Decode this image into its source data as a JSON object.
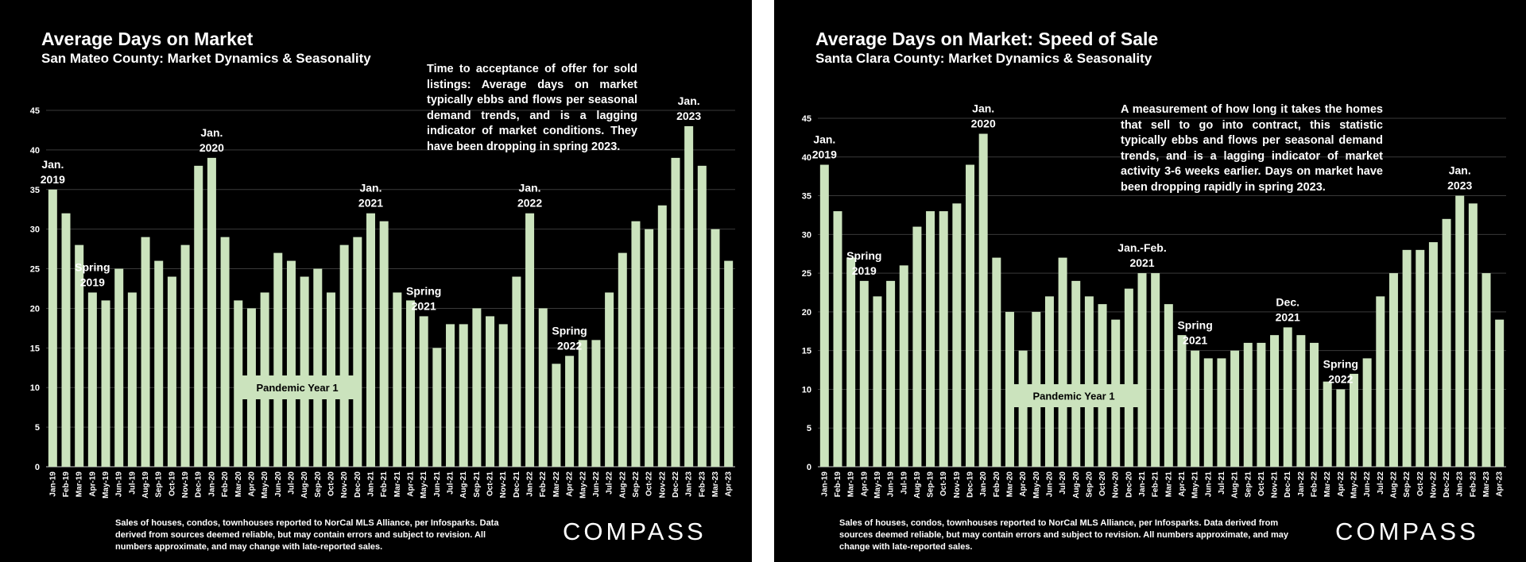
{
  "colors": {
    "bar": "#cbe3bd",
    "grid": "#3a3a3a",
    "background": "#000000"
  },
  "left": {
    "title": "Average Days on Market",
    "subtitle": "San Mateo County: Market Dynamics & Seasonality",
    "description": "Time to acceptance of offer for sold listings: Average days on market typically ebbs and flows per seasonal demand trends, and is a lagging indicator of market conditions. They have been dropping in spring 2023.",
    "footnote": "Sales of houses, condos, townhouses reported to NorCal MLS Alliance, per Infosparks. Data derived from sources deemed reliable, but may contain errors and subject to revision. All numbers approximate, and may change with late-reported sales.",
    "logo": "COMPASS",
    "pandemic_label": "Pandemic Year 1"
  },
  "right": {
    "title": "Average Days on Market: Speed of Sale",
    "subtitle": "Santa Clara County: Market Dynamics & Seasonality",
    "description": "A measurement of how long it takes the homes that sell to go into contract, this statistic typically ebbs and flows per seasonal demand trends, and is a lagging indicator of market activity 3-6 weeks earlier. Days on market have been dropping rapidly in spring 2023.",
    "footnote": "Sales of houses, condos, townhouses reported to NorCal MLS Alliance, per Infosparks. Data derived from sources deemed reliable, but may contain errors and subject to revision. All numbers approximate, and may change with late-reported sales.",
    "logo": "COMPASS",
    "pandemic_label": "Pandemic Year 1"
  },
  "chart_data": [
    {
      "type": "bar",
      "title": "Average Days on Market",
      "xlabel": "",
      "ylabel": "",
      "ylim": [
        0,
        45
      ],
      "yticks": [
        0,
        5,
        10,
        15,
        20,
        25,
        30,
        35,
        40,
        45
      ],
      "categories": [
        "Jan-19",
        "Feb-19",
        "Mar-19",
        "Apr-19",
        "May-19",
        "Jun-19",
        "Jul-19",
        "Aug-19",
        "Sep-19",
        "Oct-19",
        "Nov-19",
        "Dec-19",
        "Jan-20",
        "Feb-20",
        "Mar-20",
        "Apr-20",
        "May-20",
        "Jun-20",
        "Jul-20",
        "Aug-20",
        "Sep-20",
        "Oct-20",
        "Nov-20",
        "Dec-20",
        "Jan-21",
        "Feb-21",
        "Mar-21",
        "Apr-21",
        "May-21",
        "Jun-21",
        "Jul-21",
        "Aug-21",
        "Sep-21",
        "Oct-21",
        "Nov-21",
        "Dec-21",
        "Jan-22",
        "Feb-22",
        "Mar-22",
        "Apr-22",
        "May-22",
        "Jun-22",
        "Jul-22",
        "Aug-22",
        "Sep-22",
        "Oct-22",
        "Nov-22",
        "Dec-22",
        "Jan-23",
        "Feb-23",
        "Mar-23",
        "Apr-23"
      ],
      "values": [
        35,
        32,
        28,
        22,
        21,
        25,
        22,
        29,
        26,
        24,
        28,
        38,
        39,
        29,
        21,
        20,
        22,
        27,
        26,
        24,
        25,
        22,
        28,
        29,
        32,
        31,
        22,
        21,
        19,
        15,
        18,
        18,
        20,
        19,
        18,
        24,
        32,
        20,
        13,
        14,
        16,
        16,
        22,
        27,
        31,
        30,
        33,
        39,
        43,
        38,
        30,
        26
      ],
      "annotations": [
        {
          "index": 0,
          "lines": [
            "Jan.",
            "2019"
          ]
        },
        {
          "index": 3,
          "lines": [
            "Spring",
            "2019"
          ]
        },
        {
          "index": 12,
          "lines": [
            "Jan.",
            "2020"
          ]
        },
        {
          "index": 24,
          "lines": [
            "Jan.",
            "2021"
          ]
        },
        {
          "index": 28,
          "lines": [
            "Spring",
            "2021"
          ]
        },
        {
          "index": 36,
          "lines": [
            "Jan.",
            "2022"
          ]
        },
        {
          "index": 39,
          "lines": [
            "Spring",
            "2022"
          ]
        },
        {
          "index": 48,
          "lines": [
            "Jan.",
            "2023"
          ]
        }
      ]
    },
    {
      "type": "bar",
      "title": "Average Days on Market: Speed of Sale",
      "xlabel": "",
      "ylabel": "",
      "ylim": [
        0,
        45
      ],
      "yticks": [
        0,
        5,
        10,
        15,
        20,
        25,
        30,
        35,
        40,
        45
      ],
      "categories": [
        "Jan-19",
        "Feb-19",
        "Mar-19",
        "Apr-19",
        "May-19",
        "Jun-19",
        "Jul-19",
        "Aug-19",
        "Sep-19",
        "Oct-19",
        "Nov-19",
        "Dec-19",
        "Jan-20",
        "Feb-20",
        "Mar-20",
        "Apr-20",
        "May-20",
        "Jun-20",
        "Jul-20",
        "Aug-20",
        "Sep-20",
        "Oct-20",
        "Nov-20",
        "Dec-20",
        "Jan-21",
        "Feb-21",
        "Mar-21",
        "Apr-21",
        "May-21",
        "Jun-21",
        "Jul-21",
        "Aug-21",
        "Sep-21",
        "Oct-21",
        "Nov-21",
        "Dec-21",
        "Jan-22",
        "Feb-22",
        "Mar-22",
        "Apr-22",
        "May-22",
        "Jun-22",
        "Jul-22",
        "Aug-22",
        "Sep-22",
        "Oct-22",
        "Nov-22",
        "Dec-22",
        "Jan-23",
        "Feb-23",
        "Mar-23",
        "Apr-23"
      ],
      "values": [
        39,
        33,
        27,
        24,
        22,
        24,
        26,
        31,
        33,
        33,
        34,
        39,
        43,
        27,
        20,
        15,
        20,
        22,
        27,
        24,
        22,
        21,
        19,
        23,
        25,
        25,
        21,
        17,
        15,
        14,
        14,
        15,
        16,
        16,
        17,
        18,
        17,
        16,
        11,
        10,
        12,
        14,
        22,
        25,
        28,
        28,
        29,
        32,
        35,
        34,
        25,
        19
      ],
      "annotations": [
        {
          "index": 0,
          "lines": [
            "Jan.",
            "2019"
          ]
        },
        {
          "index": 3,
          "lines": [
            "Spring",
            "2019"
          ]
        },
        {
          "index": 12,
          "lines": [
            "Jan.",
            "2020"
          ]
        },
        {
          "index": 24,
          "lines": [
            "Jan.-Feb.",
            "2021"
          ]
        },
        {
          "index": 28,
          "lines": [
            "Spring",
            "2021"
          ]
        },
        {
          "index": 35,
          "lines": [
            "Dec.",
            "2021"
          ]
        },
        {
          "index": 39,
          "lines": [
            "Spring",
            "2022"
          ]
        },
        {
          "index": 48,
          "lines": [
            "Jan.",
            "2023"
          ]
        }
      ]
    }
  ]
}
